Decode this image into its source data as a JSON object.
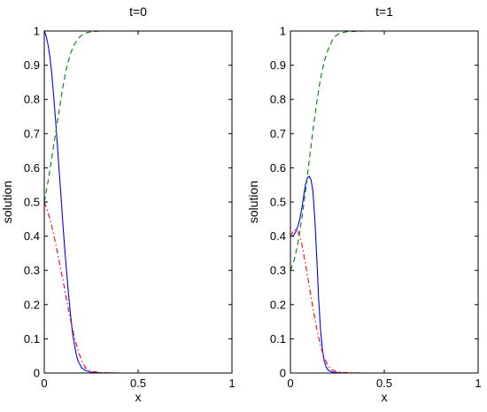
{
  "chart_data": [
    {
      "type": "line",
      "title": "t=0",
      "xlabel": "x",
      "ylabel": "solution",
      "xlim": [
        0,
        1
      ],
      "ylim": [
        0,
        1
      ],
      "xticks": [
        0,
        0.5,
        1
      ],
      "xtick_labels": [
        "0",
        "0.5",
        "1"
      ],
      "yticks": [
        0,
        0.1,
        0.2,
        0.3,
        0.4,
        0.5,
        0.6,
        0.7,
        0.8,
        0.9,
        1
      ],
      "ytick_labels": [
        "0",
        "0.1",
        "0.2",
        "0.3",
        "0.4",
        "0.5",
        "0.6",
        "0.7",
        "0.8",
        "0.9",
        "1"
      ],
      "grid": false,
      "series": [
        {
          "style": "solid",
          "color": "#0000ff",
          "x": [
            0,
            0.01,
            0.02,
            0.03,
            0.04,
            0.05,
            0.06,
            0.07,
            0.08,
            0.09,
            0.1,
            0.11,
            0.12,
            0.13,
            0.14,
            0.15,
            0.16,
            0.17,
            0.18,
            0.2,
            0.22,
            0.25,
            0.3,
            0.4,
            0.6,
            0.8,
            1
          ],
          "y": [
            1.0,
            0.985,
            0.96,
            0.925,
            0.875,
            0.81,
            0.74,
            0.665,
            0.585,
            0.51,
            0.43,
            0.355,
            0.29,
            0.225,
            0.17,
            0.12,
            0.085,
            0.055,
            0.035,
            0.015,
            0.007,
            0.002,
            0.0005,
            0,
            0,
            0,
            0
          ]
        },
        {
          "style": "dashed",
          "color": "#008000",
          "x": [
            0,
            0.02,
            0.04,
            0.06,
            0.08,
            0.1,
            0.12,
            0.14,
            0.16,
            0.18,
            0.2,
            0.22,
            0.25,
            0.3,
            0.4,
            0.6,
            0.8,
            1
          ],
          "y": [
            0.5,
            0.56,
            0.63,
            0.7,
            0.77,
            0.84,
            0.895,
            0.935,
            0.96,
            0.978,
            0.988,
            0.994,
            0.998,
            1.0,
            1.0,
            1.0,
            1.0,
            1.0
          ]
        },
        {
          "style": "dash-dot",
          "color": "#ff0000",
          "x": [
            0,
            0.02,
            0.04,
            0.06,
            0.08,
            0.1,
            0.12,
            0.14,
            0.16,
            0.18,
            0.2,
            0.22,
            0.25,
            0.3,
            0.4,
            0.6,
            0.8,
            1
          ],
          "y": [
            0.5,
            0.47,
            0.43,
            0.38,
            0.325,
            0.27,
            0.21,
            0.155,
            0.105,
            0.065,
            0.035,
            0.015,
            0.005,
            0.001,
            0,
            0,
            0,
            0
          ]
        }
      ]
    },
    {
      "type": "line",
      "title": "t=1",
      "xlabel": "x",
      "ylabel": "solution",
      "xlim": [
        0,
        1
      ],
      "ylim": [
        0,
        1
      ],
      "xticks": [
        0,
        0.5,
        1
      ],
      "xtick_labels": [
        "0",
        "0.5",
        "1"
      ],
      "yticks": [
        0,
        0.1,
        0.2,
        0.3,
        0.4,
        0.5,
        0.6,
        0.7,
        0.8,
        0.9,
        1
      ],
      "ytick_labels": [
        "0",
        "0.1",
        "0.2",
        "0.3",
        "0.4",
        "0.5",
        "0.6",
        "0.7",
        "0.8",
        "0.9",
        "1"
      ],
      "grid": false,
      "series": [
        {
          "style": "solid",
          "color": "#0000ff",
          "x": [
            0,
            0.01,
            0.02,
            0.03,
            0.04,
            0.05,
            0.06,
            0.07,
            0.08,
            0.09,
            0.1,
            0.11,
            0.12,
            0.13,
            0.14,
            0.15,
            0.16,
            0.17,
            0.18,
            0.19,
            0.2,
            0.22,
            0.25,
            0.3,
            0.4,
            0.6,
            0.8,
            1
          ],
          "y": [
            0.4,
            0.4,
            0.405,
            0.415,
            0.43,
            0.45,
            0.48,
            0.515,
            0.55,
            0.57,
            0.575,
            0.565,
            0.53,
            0.45,
            0.34,
            0.22,
            0.13,
            0.07,
            0.035,
            0.018,
            0.009,
            0.003,
            0.001,
            0,
            0,
            0,
            0,
            0
          ]
        },
        {
          "style": "dashed",
          "color": "#008000",
          "x": [
            0,
            0.02,
            0.04,
            0.06,
            0.08,
            0.1,
            0.12,
            0.14,
            0.16,
            0.18,
            0.2,
            0.22,
            0.24,
            0.26,
            0.3,
            0.4,
            0.6,
            0.8,
            1
          ],
          "y": [
            0.3,
            0.33,
            0.38,
            0.45,
            0.53,
            0.62,
            0.71,
            0.79,
            0.86,
            0.91,
            0.945,
            0.97,
            0.985,
            0.993,
            0.998,
            1.0,
            1.0,
            1.0,
            1.0
          ]
        },
        {
          "style": "dash-dot",
          "color": "#ff0000",
          "x": [
            0,
            0.02,
            0.04,
            0.06,
            0.08,
            0.1,
            0.12,
            0.14,
            0.16,
            0.18,
            0.2,
            0.22,
            0.25,
            0.3,
            0.4,
            0.6,
            0.8,
            1
          ],
          "y": [
            0.4,
            0.42,
            0.415,
            0.38,
            0.32,
            0.255,
            0.19,
            0.13,
            0.08,
            0.045,
            0.022,
            0.01,
            0.003,
            0.001,
            0,
            0,
            0,
            0
          ]
        }
      ]
    }
  ]
}
